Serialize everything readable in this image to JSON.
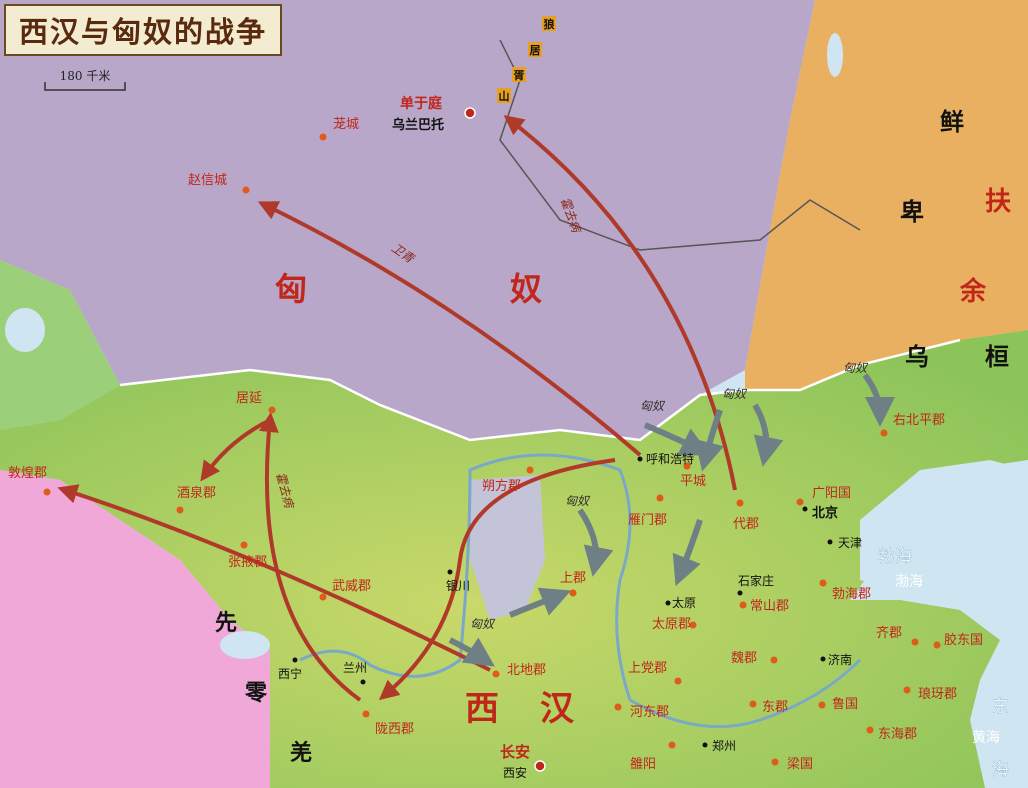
{
  "title": "西汉与匈奴的战争",
  "scale_label": "180 千米",
  "regions": {
    "xiongnu_1": "匈",
    "xiongnu_2": "奴",
    "xianbei_1": "鲜",
    "xianbei_2": "卑",
    "fuyu_1": "扶",
    "fuyu_2": "余",
    "wuhuan_1": "乌",
    "wuhuan_2": "桓",
    "xihan_1": "西",
    "xihan_2": "汉",
    "xianling_1": "先",
    "xianling_2": "零",
    "xianling_3": "羌"
  },
  "mountain": [
    "狼",
    "居",
    "胥",
    "山"
  ],
  "routes": {
    "weiqing": "卫青",
    "huoqubing_north": "霍去病",
    "huoqubing_west": "霍去病"
  },
  "raids": [
    "匈奴",
    "匈奴",
    "匈奴",
    "匈奴",
    "匈奴"
  ],
  "capital": {
    "name": "单于庭",
    "modern": "乌兰巴托"
  },
  "changan": {
    "name": "长安",
    "modern": "西安"
  },
  "places": {
    "longcheng": "茏城",
    "zhaoxincheng": "赵信城",
    "juyan": "居延",
    "dunhuang": "敦煌郡",
    "jiuquan": "酒泉郡",
    "zhangye": "张掖郡",
    "wuwei": "武威郡",
    "longxi": "陇西郡",
    "beidi": "北地郡",
    "shuofang": "朔方郡",
    "yanmen": "雁门郡",
    "pingcheng": "平城",
    "daijun": "代郡",
    "shangjun": "上郡",
    "taiyuan": "太原郡",
    "shangdang": "上党郡",
    "hedong": "河东郡",
    "weijun": "魏郡",
    "changshan": "常山郡",
    "guangyang": "广阳国",
    "youbeiping": "右北平郡",
    "bohaijun": "勃海郡",
    "qijun": "齐郡",
    "jiaodong": "胶东国",
    "langye": "琅玡郡",
    "lu": "鲁国",
    "donghai": "东海郡",
    "dongjun": "东郡",
    "liang": "梁国",
    "luoyang": "雒阳"
  },
  "modern_cities": {
    "huhehaote": "呼和浩特",
    "yinchuan": "银川",
    "lanzhou": "兰州",
    "xining": "西宁",
    "taiyuan": "太原",
    "shijiazhuang": "石家庄",
    "beijing": "北京",
    "tianjin": "天津",
    "jinan": "济南",
    "zhengzhou": "郑州"
  },
  "seas": {
    "bohai_1": "勃海",
    "bohai_2": "渤海",
    "east_1": "东",
    "huanghai": "黄海",
    "east_2": "海"
  },
  "colors": {
    "xiongnu": "#b8a7c9",
    "xianbei": "#e8b060",
    "han": "#a9d26a",
    "qiang": "#f0a8d8",
    "sea": "#cfe6f2",
    "route": "#b03a2a",
    "raid": "#6e7f86",
    "label_red": "#c0261a",
    "city_dot": "#e05a1a"
  }
}
